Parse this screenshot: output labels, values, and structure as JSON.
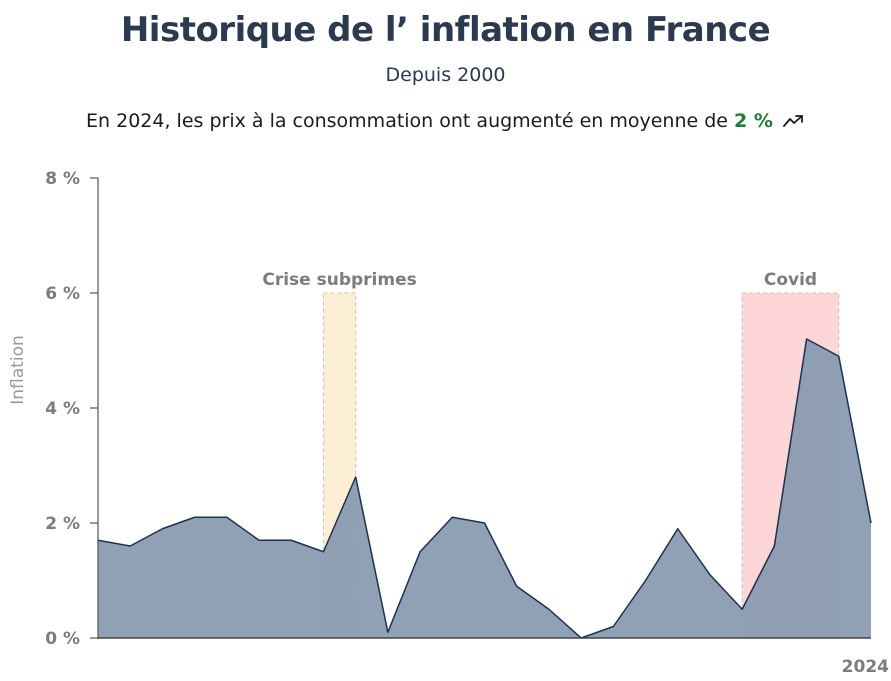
{
  "header": {
    "title": "Historique de l’ inflation en France",
    "subtitle": "Depuis 2000",
    "summary_prefix": "En 2024, les prix à la consommation ont augmenté en moyenne de ",
    "summary_value": "2 %",
    "trend_icon": "trending-up-icon"
  },
  "colors": {
    "area_fill": "#8a9bb1",
    "area_stroke": "#1c3150",
    "subprimes_band": "#fdefd6",
    "covid_band": "#ffd6d8",
    "value_green": "#1e7b3a"
  },
  "chart_data": {
    "type": "area",
    "title": "Historique de l’ inflation en France",
    "subtitle": "Depuis 2000",
    "xlabel": "",
    "ylabel": "Inflation",
    "x": [
      2000,
      2001,
      2002,
      2003,
      2004,
      2005,
      2006,
      2007,
      2008,
      2009,
      2010,
      2011,
      2012,
      2013,
      2014,
      2015,
      2016,
      2017,
      2018,
      2019,
      2020,
      2021,
      2022,
      2023,
      2024
    ],
    "values": [
      1.7,
      1.6,
      1.9,
      2.1,
      2.1,
      1.7,
      1.7,
      1.5,
      2.8,
      0.1,
      1.5,
      2.1,
      2.0,
      0.9,
      0.5,
      0.0,
      0.2,
      1.0,
      1.9,
      1.1,
      0.5,
      1.6,
      5.2,
      4.9,
      2.0
    ],
    "ylim": [
      0,
      8
    ],
    "yticks": [
      0,
      2,
      4,
      6,
      8
    ],
    "ytick_labels": [
      "0 %",
      "2 %",
      "4 %",
      "6 %",
      "8 %"
    ],
    "xtick_labels": [
      "2024"
    ],
    "periods": [
      {
        "label": "Crise subprimes",
        "start": 2007,
        "end": 2008
      },
      {
        "label": "Covid",
        "start": 2020,
        "end": 2023
      }
    ]
  }
}
